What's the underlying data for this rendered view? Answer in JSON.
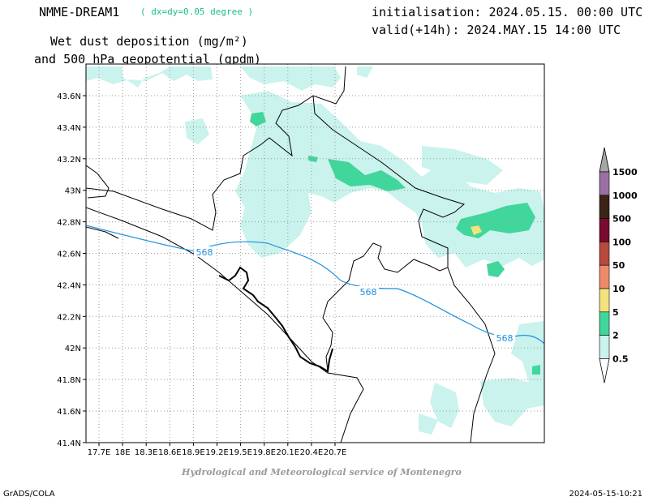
{
  "header": {
    "model": "NMME-DREAM1",
    "resolution": "( dx=dy=0.05 degree )",
    "title_line1": "Wet dust deposition (mg/m²)",
    "title_line2": "and 500 hPa geopotential (gpdm)",
    "initialisation": "initialisation: 2024.05.15. 00:00 UTC",
    "valid": "valid(+14h): 2024.MAY.15 14:00 UTC"
  },
  "map": {
    "lon_ticks": [
      "17.7E",
      "18E",
      "18.3E",
      "18.6E",
      "18.9E",
      "19.2E",
      "19.5E",
      "19.8E",
      "20.1E",
      "20.4E",
      "20.7E"
    ],
    "lat_ticks": [
      "43.6N",
      "43.4N",
      "43.2N",
      "43N",
      "42.8N",
      "42.6N",
      "42.4N",
      "42.2N",
      "42N",
      "41.8N",
      "41.6N",
      "41.4N"
    ],
    "contour_label": "568",
    "contour_color": "#1e90e0",
    "boundary_color": "#000000",
    "grid_color": "#999999"
  },
  "legend": {
    "levels": [
      "1500",
      "1000",
      "500",
      "100",
      "50",
      "10",
      "5",
      "2",
      "0.5"
    ],
    "colors": [
      "#a6a6a6",
      "#9b6fa3",
      "#3b2415",
      "#7a0a2e",
      "#b84a3e",
      "#ee8a6a",
      "#f3e37c",
      "#41d69c",
      "#c9f3ec"
    ]
  },
  "footer": {
    "credit": "Hydrological and Meteorological service of Montenegro",
    "software": "GrADS/COLA",
    "timestamp": "2024-05-15-10:21"
  }
}
